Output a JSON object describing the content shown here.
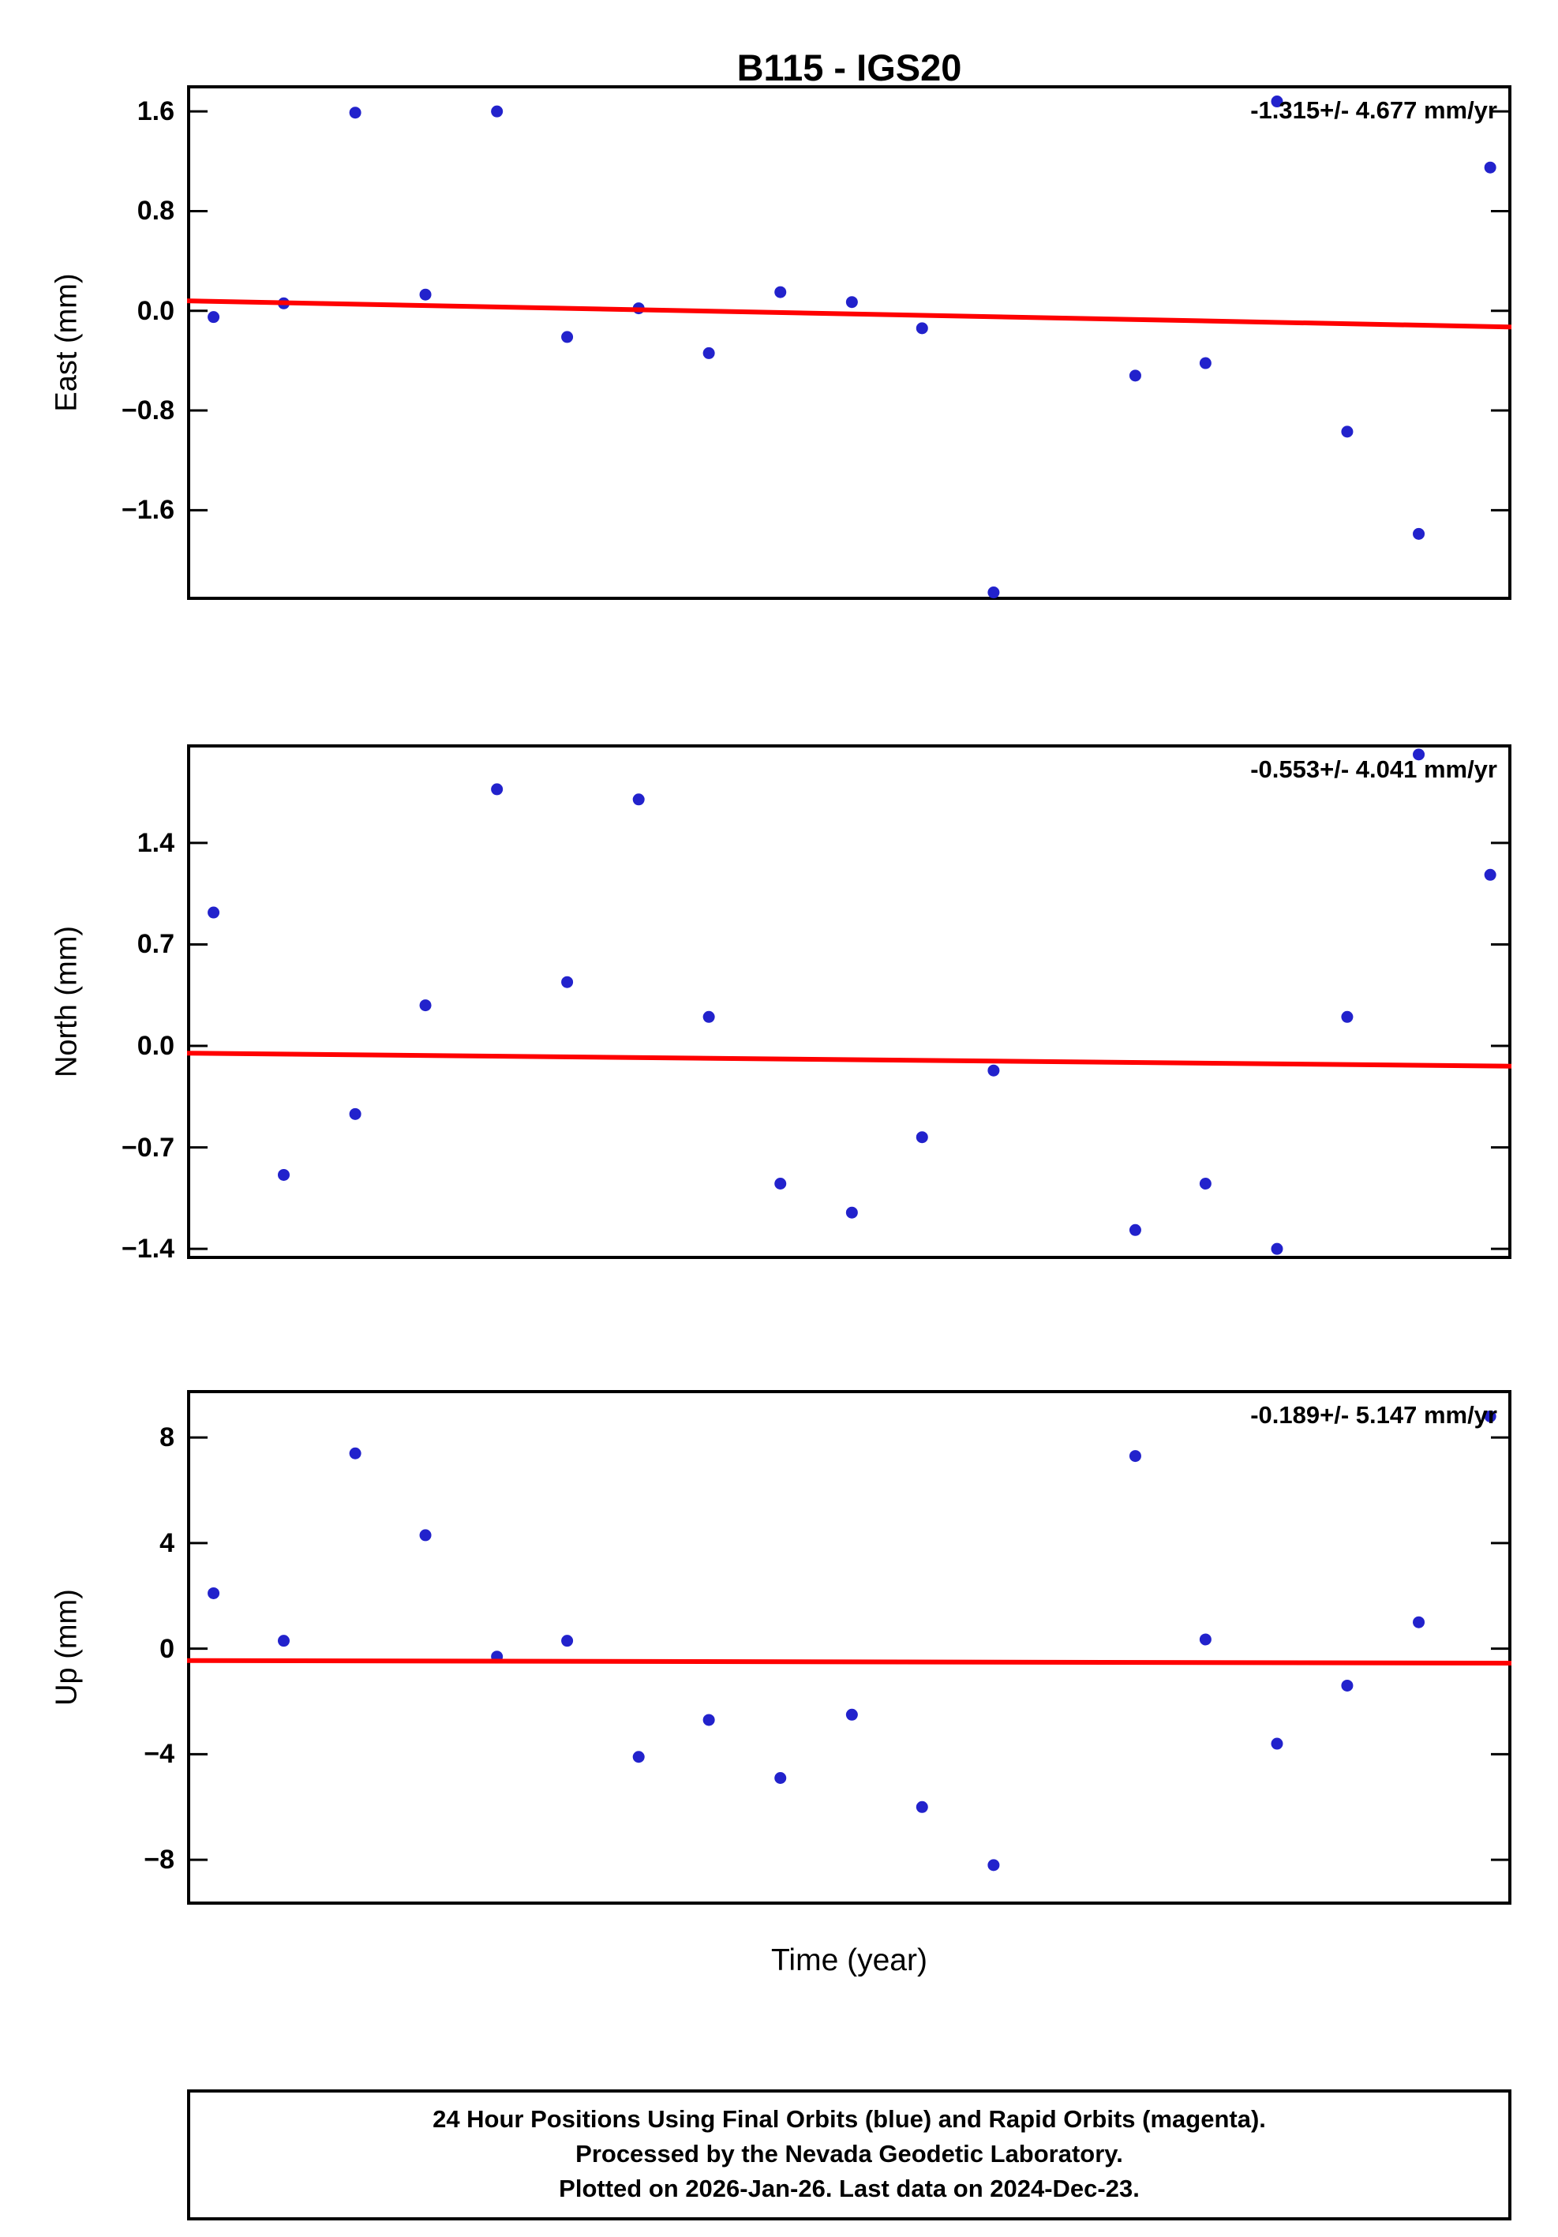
{
  "title": "B115 - IGS20",
  "xlabel": "Time (year)",
  "colors": {
    "point": "#2222cc",
    "trend": "#ff0000",
    "axis": "#000000",
    "background": "#ffffff"
  },
  "footer": {
    "line1": "24 Hour Positions Using Final Orbits (blue) and Rapid Orbits (magenta).",
    "line2": "Processed by the Nevada Geodetic Laboratory.",
    "line3": "Plotted on 2026-Jan-26. Last data on 2024-Dec-23."
  },
  "chart_data": [
    {
      "type": "scatter",
      "name": "east",
      "ylabel": "East (mm)",
      "annotation": "-1.315+/- 4.677 mm/yr",
      "legend": "none",
      "grid": false,
      "ylim": [
        -2.32,
        1.81
      ],
      "yticks": [
        1.6,
        0.8,
        0.0,
        -0.8,
        -1.6
      ],
      "ytick_labels": [
        "1.6",
        "0.8",
        "0.0",
        "−0.8",
        "−1.6"
      ],
      "xlim": [
        0,
        1
      ],
      "xtick_labels": [],
      "x": [
        0.02,
        0.073,
        0.127,
        0.18,
        0.234,
        0.287,
        0.341,
        0.394,
        0.448,
        0.502,
        0.555,
        0.609,
        0.716,
        0.769,
        0.823,
        0.876,
        0.93,
        0.984
      ],
      "y": [
        -0.05,
        0.06,
        1.59,
        0.13,
        1.6,
        -0.21,
        0.02,
        -0.34,
        0.15,
        0.07,
        -0.14,
        -2.26,
        -0.52,
        -0.42,
        1.68,
        -0.97,
        -1.79,
        1.15
      ],
      "trend": {
        "x": [
          0,
          1
        ],
        "y": [
          0.08,
          -0.13
        ]
      }
    },
    {
      "type": "scatter",
      "name": "north",
      "ylabel": "North (mm)",
      "annotation": "-0.553+/- 4.041 mm/yr",
      "legend": "none",
      "grid": false,
      "ylim": [
        -1.47,
        2.08
      ],
      "yticks": [
        1.4,
        0.7,
        0.0,
        -0.7,
        -1.4
      ],
      "ytick_labels": [
        "1.4",
        "0.7",
        "0.0",
        "−0.7",
        "−1.4"
      ],
      "xlim": [
        0,
        1
      ],
      "xtick_labels": [],
      "x": [
        0.02,
        0.073,
        0.127,
        0.18,
        0.234,
        0.287,
        0.341,
        0.394,
        0.448,
        0.502,
        0.555,
        0.609,
        0.716,
        0.769,
        0.823,
        0.876,
        0.93,
        0.984
      ],
      "y": [
        0.92,
        -0.89,
        -0.47,
        0.28,
        1.77,
        0.44,
        1.7,
        0.2,
        -0.95,
        -1.15,
        -0.63,
        -0.17,
        -1.27,
        -0.95,
        -1.4,
        0.2,
        2.01,
        1.18
      ],
      "trend": {
        "x": [
          0,
          1
        ],
        "y": [
          -0.05,
          -0.14
        ]
      }
    },
    {
      "type": "scatter",
      "name": "up",
      "ylabel": "Up (mm)",
      "annotation": "-0.189+/- 5.147 mm/yr",
      "legend": "none",
      "grid": false,
      "ylim": [
        -9.7,
        9.8
      ],
      "yticks": [
        8,
        4,
        0,
        -4,
        -8
      ],
      "ytick_labels": [
        "8",
        "4",
        "0",
        "−4",
        "−8"
      ],
      "xlim": [
        0,
        1
      ],
      "xtick_labels": [],
      "x": [
        0.02,
        0.073,
        0.127,
        0.18,
        0.234,
        0.287,
        0.341,
        0.394,
        0.448,
        0.502,
        0.555,
        0.609,
        0.716,
        0.769,
        0.823,
        0.876,
        0.93,
        0.984
      ],
      "y": [
        2.1,
        0.3,
        7.4,
        4.3,
        -0.3,
        0.3,
        -4.1,
        -2.7,
        -4.9,
        -2.5,
        -6.0,
        -8.2,
        7.3,
        0.35,
        -3.6,
        -1.4,
        1.0,
        8.8
      ],
      "trend": {
        "x": [
          0,
          1
        ],
        "y": [
          -0.45,
          -0.55
        ]
      }
    }
  ]
}
